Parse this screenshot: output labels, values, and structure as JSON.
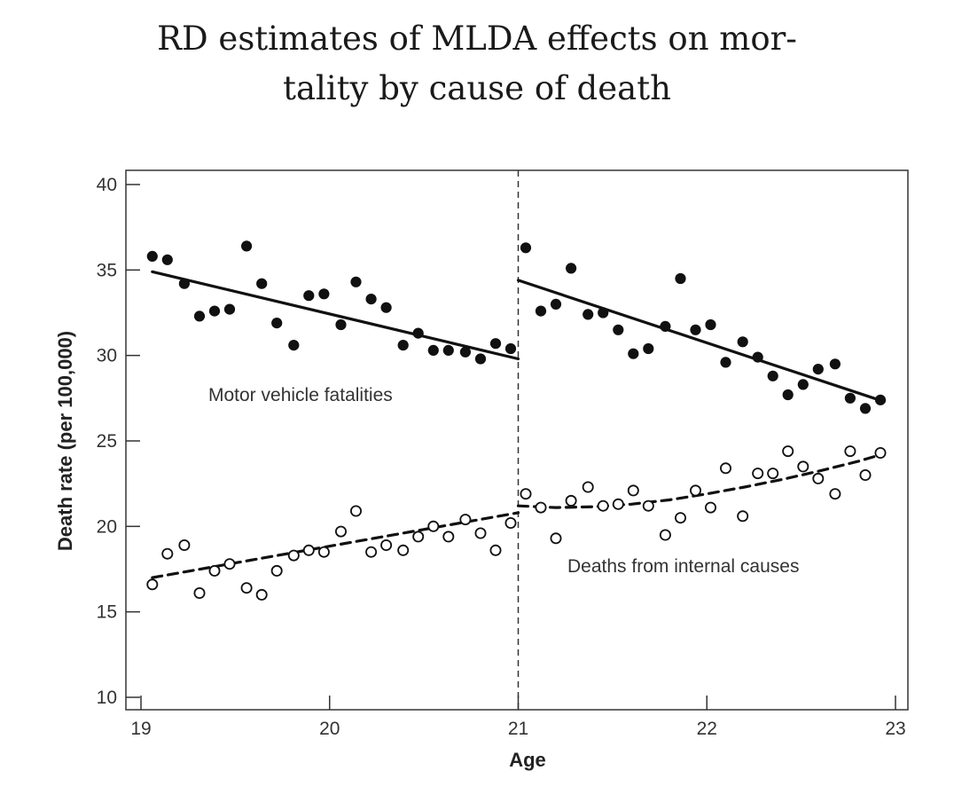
{
  "chart_data": {
    "type": "scatter",
    "title_line1": "RD estimates of MLDA effects on mor-",
    "title_line2": "tality by cause of death",
    "xlabel": "Age",
    "ylabel": "Death rate (per 100,000)",
    "xlim": [
      19,
      23
    ],
    "ylim": [
      10,
      40
    ],
    "xticks": [
      "19",
      "20",
      "21",
      "22",
      "23"
    ],
    "yticks": [
      "10",
      "15",
      "20",
      "25",
      "30",
      "35",
      "40"
    ],
    "cutoff": 21,
    "annotations": {
      "motor": "Motor vehicle fatalities",
      "internal": "Deaths from internal causes"
    },
    "series": [
      {
        "name": "Motor vehicle fatalities",
        "marker": "filled",
        "x": [
          19.06,
          19.14,
          19.23,
          19.31,
          19.39,
          19.47,
          19.56,
          19.64,
          19.72,
          19.81,
          19.89,
          19.97,
          20.06,
          20.14,
          20.22,
          20.3,
          20.39,
          20.47,
          20.55,
          20.63,
          20.72,
          20.8,
          20.88,
          20.96,
          21.04,
          21.12,
          21.2,
          21.28,
          21.37,
          21.45,
          21.53,
          21.61,
          21.69,
          21.78,
          21.86,
          21.94,
          22.02,
          22.1,
          22.19,
          22.27,
          22.35,
          22.43,
          22.51,
          22.59,
          22.68,
          22.76,
          22.84,
          22.92
        ],
        "y": [
          35.8,
          35.6,
          34.2,
          32.3,
          32.6,
          32.7,
          36.4,
          34.2,
          31.9,
          30.6,
          33.5,
          33.6,
          31.8,
          34.3,
          33.3,
          32.8,
          30.6,
          31.3,
          30.3,
          30.3,
          30.2,
          29.8,
          30.7,
          30.4,
          36.3,
          32.6,
          33.0,
          35.1,
          32.4,
          32.5,
          31.5,
          30.1,
          30.4,
          31.7,
          34.5,
          31.5,
          31.8,
          29.6,
          30.8,
          29.9,
          28.8,
          27.7,
          28.3,
          29.2,
          29.5,
          27.5,
          26.9,
          27.4
        ]
      },
      {
        "name": "Deaths from internal causes",
        "marker": "open",
        "x": [
          19.06,
          19.14,
          19.23,
          19.31,
          19.39,
          19.47,
          19.56,
          19.64,
          19.72,
          19.81,
          19.89,
          19.97,
          20.06,
          20.14,
          20.22,
          20.3,
          20.39,
          20.47,
          20.55,
          20.63,
          20.72,
          20.8,
          20.88,
          20.96,
          21.04,
          21.12,
          21.2,
          21.28,
          21.37,
          21.45,
          21.53,
          21.61,
          21.69,
          21.78,
          21.86,
          21.94,
          22.02,
          22.1,
          22.19,
          22.27,
          22.35,
          22.43,
          22.51,
          22.59,
          22.68,
          22.76,
          22.84,
          22.92
        ],
        "y": [
          16.6,
          18.4,
          18.9,
          16.1,
          17.4,
          17.8,
          16.4,
          16.0,
          17.4,
          18.3,
          18.6,
          18.5,
          19.7,
          20.9,
          18.5,
          18.9,
          18.6,
          19.4,
          20.0,
          19.4,
          20.4,
          19.6,
          18.6,
          20.2,
          21.9,
          21.1,
          19.3,
          21.5,
          22.3,
          21.2,
          21.3,
          22.1,
          21.2,
          19.5,
          20.5,
          22.1,
          21.1,
          23.4,
          20.6,
          23.1,
          23.1,
          24.4,
          23.5,
          22.8,
          21.9,
          24.4,
          23.0,
          24.3
        ]
      }
    ],
    "fits": [
      {
        "series": "Motor vehicle fatalities",
        "style": "solid",
        "x": [
          19.06,
          21.0
        ],
        "y": [
          34.9,
          29.8
        ]
      },
      {
        "series": "Motor vehicle fatalities",
        "style": "solid",
        "x": [
          21.0,
          22.94
        ],
        "y": [
          34.4,
          27.3
        ]
      },
      {
        "series": "Deaths from internal causes",
        "style": "dashed",
        "x": [
          19.06,
          21.0
        ],
        "y": [
          17.0,
          20.8
        ]
      },
      {
        "series": "Deaths from internal causes",
        "style": "dashed",
        "x": [
          21.0,
          21.2,
          21.4,
          21.6,
          21.8,
          22.0,
          22.2,
          22.4,
          22.6,
          22.8,
          22.94
        ],
        "y": [
          21.2,
          21.1,
          21.15,
          21.3,
          21.55,
          21.9,
          22.3,
          22.75,
          23.25,
          23.8,
          24.25
        ]
      }
    ]
  }
}
